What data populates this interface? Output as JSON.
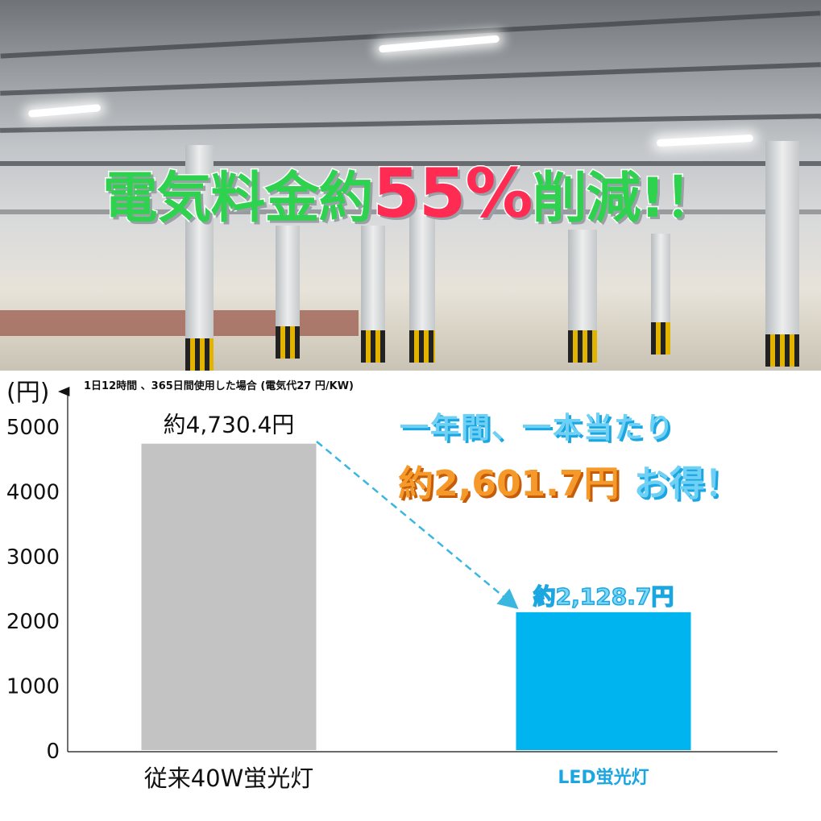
{
  "headline": {
    "part1": "電気料金約",
    "highlight": "55%",
    "part2": "削減!！"
  },
  "subtitle": "1日12時間 、365日間使用した場合 (電気代27 円/KW)",
  "callout": {
    "line1": "一年間、一本当たり",
    "savings": "約2,601.7円",
    "suffix": "お得！"
  },
  "colors": {
    "bar_conventional": "#c3c3c3",
    "bar_led": "#00b4f0",
    "headline_green": "#2fd24f",
    "headline_red": "#ff2b52",
    "savings_orange": "#f59a2a",
    "arrow": "#3ab7e0"
  },
  "chart_data": {
    "type": "bar",
    "ylabel": "(円)",
    "ylim": [
      0,
      5000
    ],
    "yticks": [
      "0",
      "1000",
      "2000",
      "3000",
      "4000",
      "5000"
    ],
    "categories": [
      "従来40W蛍光灯",
      "LED蛍光灯"
    ],
    "values": [
      4730.4,
      2128.7
    ],
    "data_labels": [
      "約4,730.4円",
      "約2,128.7円"
    ],
    "grid": false,
    "annotation": "dashed arrow from conventional bar to LED bar"
  }
}
